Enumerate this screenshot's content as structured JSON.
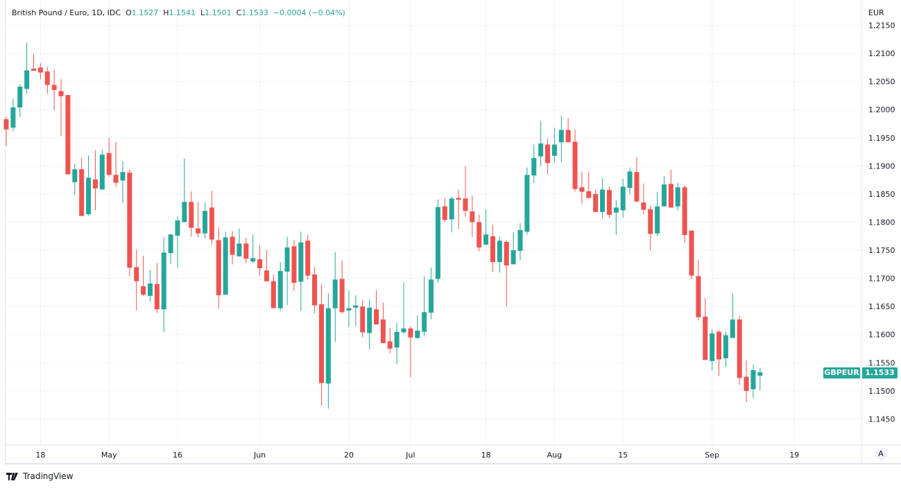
{
  "legend": {
    "title": "British Pound / Euro, 1D, IDC",
    "o_label": "O",
    "o_value": "1.1527",
    "h_label": "H",
    "h_value": "1.1541",
    "l_label": "L",
    "l_value": "1.1501",
    "c_label": "C",
    "c_value": "1.1533",
    "change": "−0.0004 (−0.04%)"
  },
  "price_axis": {
    "currency": "EUR"
  },
  "last_price_tag": {
    "symbol": "GBPEUR",
    "value": "1.1533"
  },
  "auto_scale_label": "A",
  "brand": "TradingView",
  "colors": {
    "up": "#26a69a",
    "down": "#ef5350",
    "grid": "#f0f3fa",
    "axis": "#e0e3eb"
  },
  "chart_data": {
    "type": "candlestick",
    "title": "British Pound / Euro, 1D, IDC",
    "ylabel": "EUR",
    "ylim": [
      1.14037,
      1.2195
    ],
    "y_ticks": [
      "1.2150",
      "1.2100",
      "1.2050",
      "1.2000",
      "1.1950",
      "1.1900",
      "1.1850",
      "1.1800",
      "1.1750",
      "1.1700",
      "1.1650",
      "1.1600",
      "1.1550",
      "1.1500",
      "1.1450"
    ],
    "x_ticks": [
      {
        "index": 5,
        "label": "18"
      },
      {
        "index": 15,
        "label": "May"
      },
      {
        "index": 25,
        "label": "16"
      },
      {
        "index": 37,
        "label": "Jun"
      },
      {
        "index": 50,
        "label": "20"
      },
      {
        "index": 59,
        "label": "Jul"
      },
      {
        "index": 70,
        "label": "18"
      },
      {
        "index": 80,
        "label": "Aug"
      },
      {
        "index": 90,
        "label": "15"
      },
      {
        "index": 103,
        "label": "Sep"
      },
      {
        "index": 115,
        "label": "19"
      }
    ],
    "grid": true,
    "ohlc_columns": [
      "open",
      "high",
      "low",
      "close"
    ],
    "ohlc": [
      [
        1.1983,
        1.1988,
        1.1935,
        1.1965
      ],
      [
        1.1968,
        1.2019,
        1.1962,
        1.2004
      ],
      [
        1.2004,
        1.2045,
        1.1987,
        1.2041
      ],
      [
        1.2037,
        1.2119,
        1.2029,
        1.207
      ],
      [
        1.2073,
        1.2099,
        1.2069,
        1.2069
      ],
      [
        1.2075,
        1.2083,
        1.2054,
        1.2066
      ],
      [
        1.2068,
        1.2076,
        1.2028,
        1.2044
      ],
      [
        1.2044,
        1.2071,
        1.1999,
        1.2035
      ],
      [
        1.2033,
        1.2054,
        1.1953,
        1.2024
      ],
      [
        1.2026,
        1.2026,
        1.1885,
        1.1885
      ],
      [
        1.1871,
        1.1904,
        1.1848,
        1.1894
      ],
      [
        1.1894,
        1.1914,
        1.1811,
        1.1811
      ],
      [
        1.1814,
        1.1919,
        1.1811,
        1.1879
      ],
      [
        1.1876,
        1.1928,
        1.1821,
        1.186
      ],
      [
        1.1858,
        1.1929,
        1.1858,
        1.192
      ],
      [
        1.1923,
        1.195,
        1.1881,
        1.1884
      ],
      [
        1.1884,
        1.1943,
        1.1863,
        1.187
      ],
      [
        1.1874,
        1.1908,
        1.1835,
        1.1889
      ],
      [
        1.1888,
        1.1894,
        1.1704,
        1.1719
      ],
      [
        1.172,
        1.1751,
        1.1643,
        1.1695
      ],
      [
        1.1686,
        1.174,
        1.1669,
        1.1671
      ],
      [
        1.1669,
        1.1715,
        1.1659,
        1.1691
      ],
      [
        1.169,
        1.1728,
        1.1638,
        1.1645
      ],
      [
        1.1645,
        1.1773,
        1.1604,
        1.1746
      ],
      [
        1.1745,
        1.1779,
        1.1726,
        1.1778
      ],
      [
        1.1776,
        1.181,
        1.1719,
        1.1803
      ],
      [
        1.18,
        1.1913,
        1.18,
        1.1836
      ],
      [
        1.1836,
        1.1855,
        1.1774,
        1.179
      ],
      [
        1.1789,
        1.1836,
        1.1773,
        1.178
      ],
      [
        1.178,
        1.1835,
        1.1771,
        1.182
      ],
      [
        1.1826,
        1.1856,
        1.176,
        1.1769
      ],
      [
        1.1768,
        1.1791,
        1.1646,
        1.167
      ],
      [
        1.1671,
        1.1783,
        1.1671,
        1.1773
      ],
      [
        1.1774,
        1.1784,
        1.1725,
        1.1742
      ],
      [
        1.1739,
        1.1789,
        1.1739,
        1.1762
      ],
      [
        1.1762,
        1.1772,
        1.1727,
        1.1735
      ],
      [
        1.173,
        1.1778,
        1.1727,
        1.1736
      ],
      [
        1.1734,
        1.1759,
        1.1705,
        1.1718
      ],
      [
        1.1714,
        1.175,
        1.1695,
        1.1695
      ],
      [
        1.1695,
        1.1707,
        1.1647,
        1.1647
      ],
      [
        1.1647,
        1.1729,
        1.1643,
        1.1713
      ],
      [
        1.1712,
        1.1774,
        1.1652,
        1.1755
      ],
      [
        1.1757,
        1.1768,
        1.1678,
        1.1692
      ],
      [
        1.1694,
        1.1783,
        1.1642,
        1.1764
      ],
      [
        1.1767,
        1.1777,
        1.1698,
        1.1705
      ],
      [
        1.1707,
        1.172,
        1.1638,
        1.1652
      ],
      [
        1.1654,
        1.1689,
        1.1474,
        1.1514
      ],
      [
        1.1513,
        1.1673,
        1.1468,
        1.1647
      ],
      [
        1.1647,
        1.1747,
        1.1587,
        1.1698
      ],
      [
        1.1699,
        1.1732,
        1.1637,
        1.164
      ],
      [
        1.1643,
        1.1679,
        1.1613,
        1.1647
      ],
      [
        1.1648,
        1.167,
        1.1615,
        1.1652
      ],
      [
        1.165,
        1.1662,
        1.1595,
        1.1604
      ],
      [
        1.1603,
        1.1663,
        1.1574,
        1.1648
      ],
      [
        1.1645,
        1.1679,
        1.1618,
        1.1618
      ],
      [
        1.1627,
        1.1657,
        1.1585,
        1.1585
      ],
      [
        1.1588,
        1.1612,
        1.1567,
        1.1575
      ],
      [
        1.1577,
        1.1621,
        1.1547,
        1.1605
      ],
      [
        1.1604,
        1.1693,
        1.1602,
        1.1611
      ],
      [
        1.1611,
        1.1615,
        1.1524,
        1.1595
      ],
      [
        1.1594,
        1.1634,
        1.1593,
        1.1607
      ],
      [
        1.1605,
        1.1704,
        1.1597,
        1.164
      ],
      [
        1.1639,
        1.1719,
        1.1627,
        1.1698
      ],
      [
        1.1699,
        1.184,
        1.1692,
        1.1827
      ],
      [
        1.1828,
        1.1843,
        1.18,
        1.1804
      ],
      [
        1.1805,
        1.1845,
        1.1782,
        1.1842
      ],
      [
        1.1843,
        1.1857,
        1.1788,
        1.184
      ],
      [
        1.1842,
        1.1899,
        1.181,
        1.182
      ],
      [
        1.1819,
        1.1847,
        1.1773,
        1.18
      ],
      [
        1.18,
        1.1813,
        1.1748,
        1.1755
      ],
      [
        1.176,
        1.1823,
        1.176,
        1.1778
      ],
      [
        1.1775,
        1.1795,
        1.1712,
        1.1729
      ],
      [
        1.1729,
        1.1774,
        1.171,
        1.1767
      ],
      [
        1.1765,
        1.1768,
        1.165,
        1.1723
      ],
      [
        1.1725,
        1.1782,
        1.1725,
        1.175
      ],
      [
        1.1749,
        1.1798,
        1.1732,
        1.1786
      ],
      [
        1.1783,
        1.1897,
        1.1778,
        1.1884
      ],
      [
        1.1883,
        1.1938,
        1.1869,
        1.1914
      ],
      [
        1.1917,
        1.198,
        1.19,
        1.194
      ],
      [
        1.1938,
        1.1948,
        1.1885,
        1.1905
      ],
      [
        1.1918,
        1.1968,
        1.1907,
        1.1938
      ],
      [
        1.1942,
        1.1989,
        1.1907,
        1.1964
      ],
      [
        1.1964,
        1.1985,
        1.1942,
        1.1942
      ],
      [
        1.1943,
        1.1965,
        1.1854,
        1.1859
      ],
      [
        1.1862,
        1.1889,
        1.1833,
        1.1854
      ],
      [
        1.1855,
        1.189,
        1.1843,
        1.1843
      ],
      [
        1.185,
        1.1857,
        1.1818,
        1.1818
      ],
      [
        1.1818,
        1.1878,
        1.1807,
        1.1858
      ],
      [
        1.1857,
        1.1863,
        1.1807,
        1.1813
      ],
      [
        1.1817,
        1.1839,
        1.1777,
        1.1826
      ],
      [
        1.1821,
        1.1877,
        1.1808,
        1.1863
      ],
      [
        1.1861,
        1.1897,
        1.1849,
        1.189
      ],
      [
        1.1889,
        1.1915,
        1.1835,
        1.1837
      ],
      [
        1.1835,
        1.1869,
        1.1814,
        1.1822
      ],
      [
        1.1823,
        1.1829,
        1.175,
        1.1779
      ],
      [
        1.178,
        1.1854,
        1.1775,
        1.1828
      ],
      [
        1.1828,
        1.1882,
        1.1828,
        1.1867
      ],
      [
        1.1868,
        1.1893,
        1.1826,
        1.1826
      ],
      [
        1.1828,
        1.187,
        1.1821,
        1.1862
      ],
      [
        1.1862,
        1.1866,
        1.1763,
        1.1777
      ],
      [
        1.1785,
        1.1785,
        1.1698,
        1.1705
      ],
      [
        1.1704,
        1.1733,
        1.1625,
        1.1631
      ],
      [
        1.1632,
        1.1665,
        1.1555,
        1.1555
      ],
      [
        1.1553,
        1.1609,
        1.1536,
        1.1602
      ],
      [
        1.1605,
        1.1608,
        1.1527,
        1.1556
      ],
      [
        1.1558,
        1.1605,
        1.1542,
        1.1599
      ],
      [
        1.1594,
        1.1673,
        1.1594,
        1.1627
      ],
      [
        1.1627,
        1.1633,
        1.1511,
        1.1523
      ],
      [
        1.1525,
        1.1554,
        1.148,
        1.15
      ],
      [
        1.1503,
        1.1547,
        1.1487,
        1.1537
      ],
      [
        1.1527,
        1.1541,
        1.1501,
        1.1533
      ]
    ]
  }
}
